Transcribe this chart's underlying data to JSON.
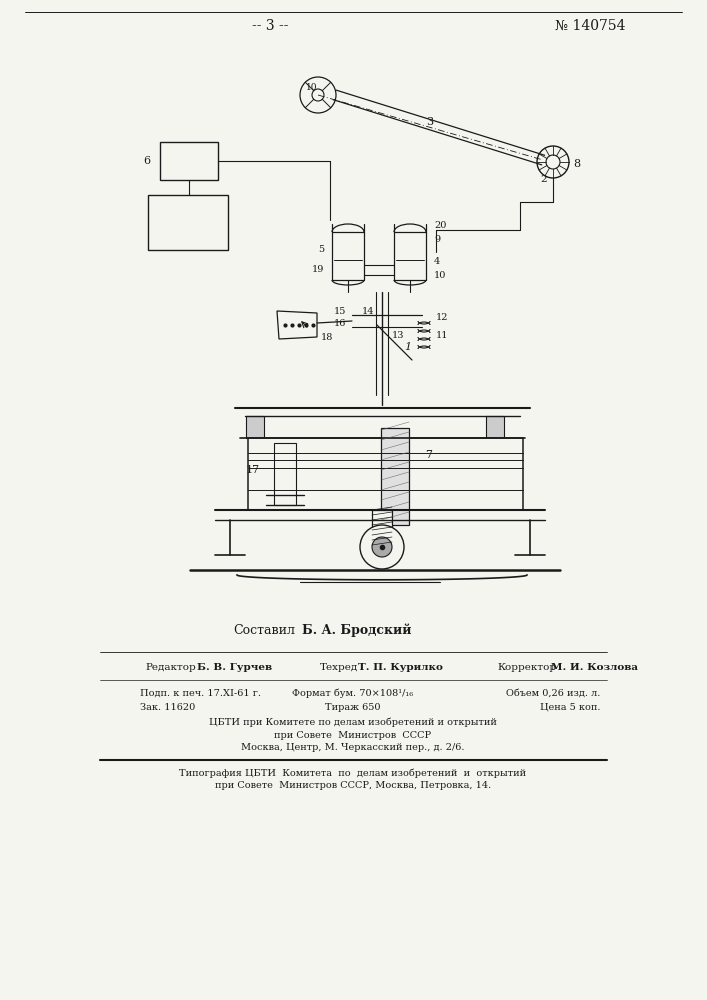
{
  "bg_color": "#f5f5f0",
  "text_color": "#1a1a1a",
  "line_color": "#1a1a1a",
  "page_num": "-- 3 --",
  "patent_num": "№ 140754",
  "composed_label": "Составил",
  "composed_name": "Б. А. Бродский",
  "editor_label": "Редактор Б. В. Гурчев",
  "techred_label": "Техред Т. П. Курилко",
  "corrector_label": "Корректор М. И. Козлова",
  "info_col1_line1": "Подп. к печ. 17.XI-61 г.",
  "info_col1_line2": "Зак. 11620",
  "info_col2_line1": "Формат бум. 70×108¹/₁₆",
  "info_col2_line2": "Тираж 650",
  "info_col3_line1": "Объем 0,26 изд. л.",
  "info_col3_line2": "Цена 5 коп.",
  "cbti1": "ЦБТИ при Комитете по делам изобретений и открытий",
  "cbti2": "при Совете  Министров  СССР",
  "cbti3": "Москва, Центр, М. Черкасский пер., д. 2/6.",
  "typo1": "Типография ЦБТИ  Комитета  по  делам изобретений  и  открытий",
  "typo2": "при Совете  Министров СССР, Москва, Петровка, 14."
}
